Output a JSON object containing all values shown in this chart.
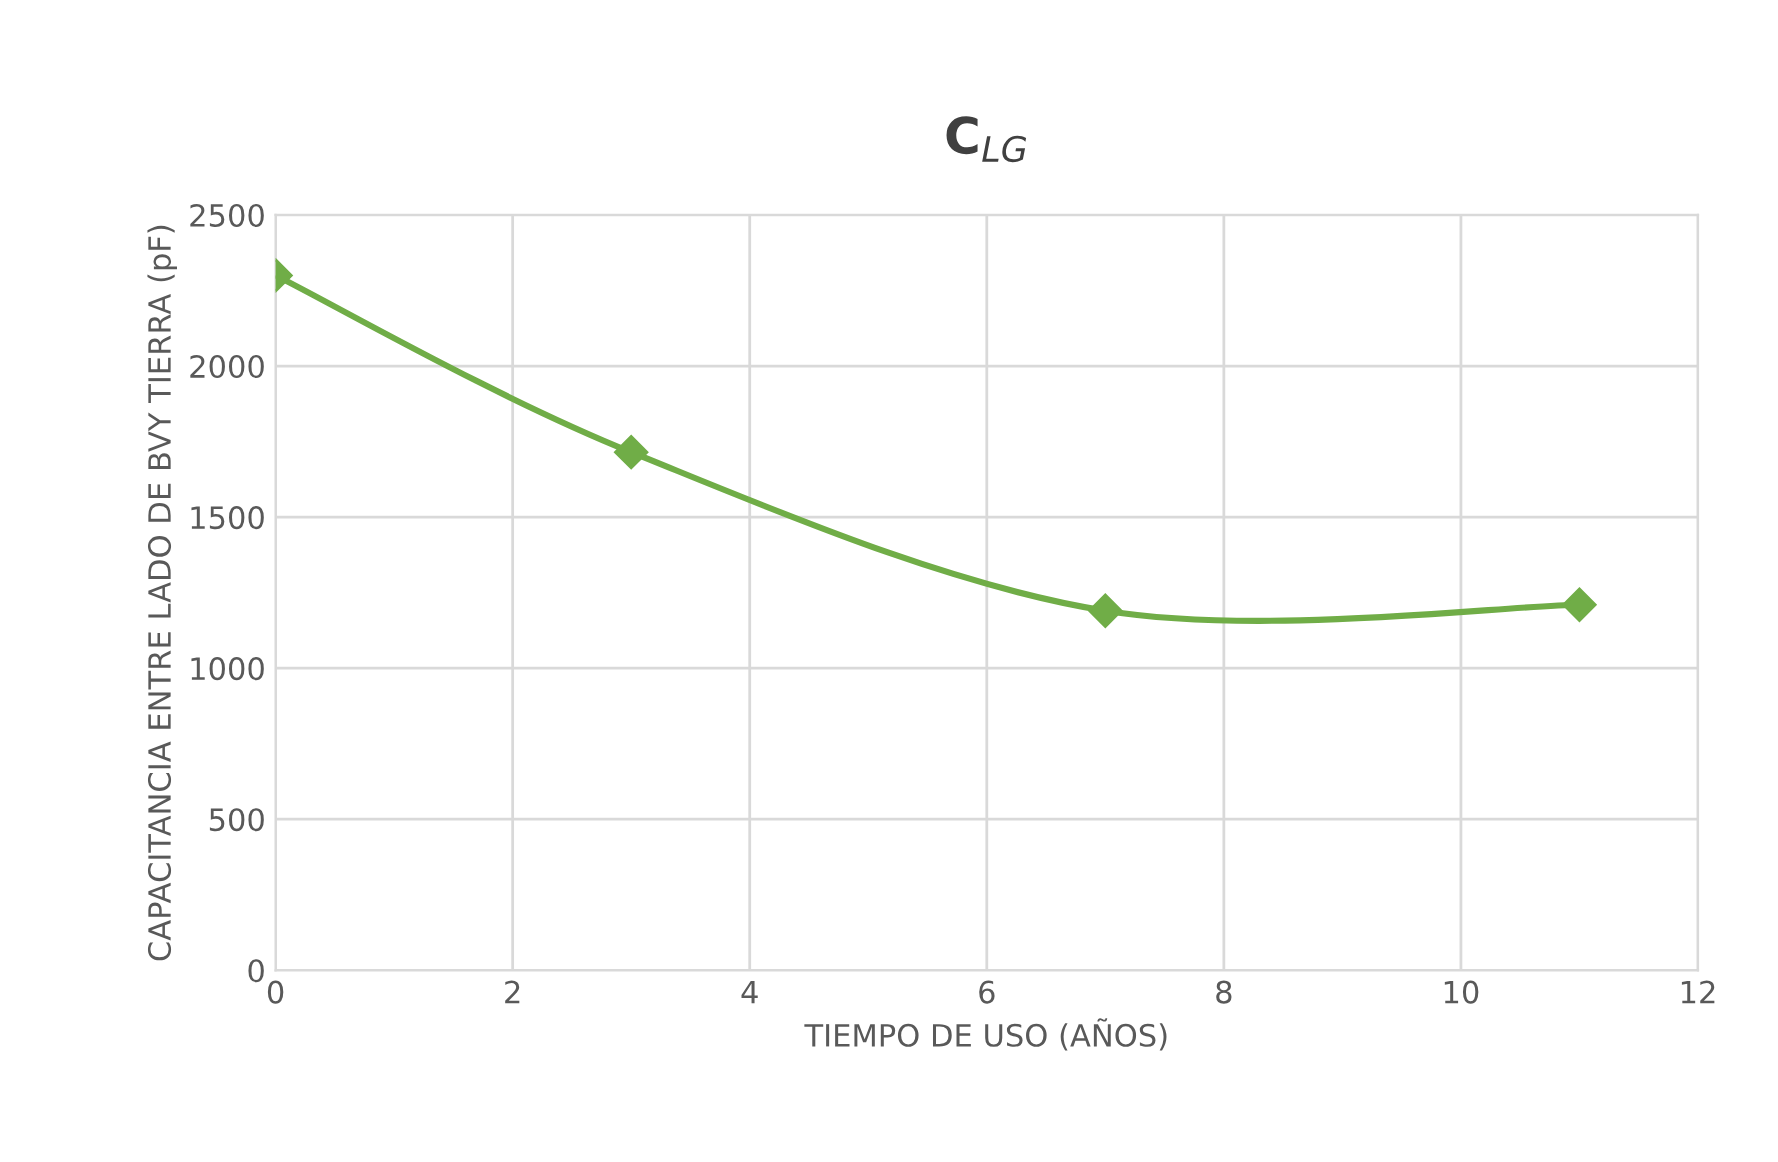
{
  "chart_data": {
    "type": "line",
    "title": "C$_{LG}$",
    "xlabel": "TIEMPO DE USO (AÑOS)",
    "ylabel": "CAPACITANCIA ENTRE LADO DE BVY TIERRA (pF)",
    "x": [
      0,
      3,
      7,
      11
    ],
    "series": [
      {
        "color": "#70ad47",
        "values": [
          2300,
          1715,
          1190,
          1210
        ]
      }
    ],
    "xlim": [
      0,
      12
    ],
    "xticks": [
      0,
      2,
      4,
      6,
      8,
      10,
      12
    ],
    "ylim": [
      0,
      2500
    ],
    "yticks": [
      0,
      500,
      1000,
      1500,
      2000,
      2500
    ],
    "grid": true,
    "marker": "diamond",
    "line_style": "solid"
  }
}
